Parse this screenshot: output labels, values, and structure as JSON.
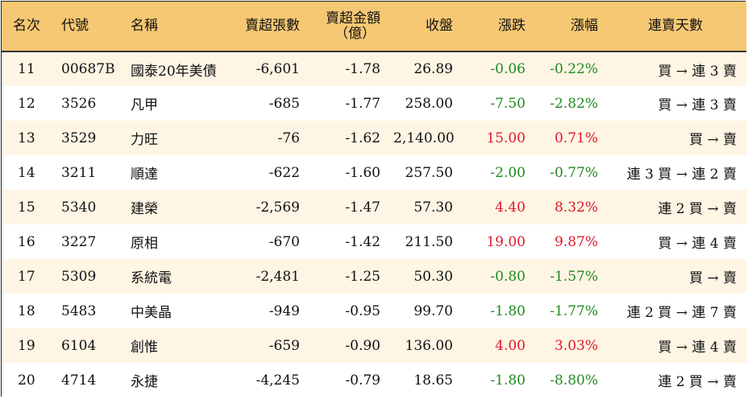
{
  "headers": {
    "rank": "名次",
    "code": "代號",
    "name": "名稱",
    "sell_lots": "賣超張數",
    "sell_amount_line1": "賣超金額",
    "sell_amount_line2": "（億）",
    "close": "收盤",
    "change": "漲跌",
    "pct": "漲幅",
    "streak": "連賣天數"
  },
  "colors": {
    "header_bg": "#f7c873",
    "row_alt_bg": "#fef5e4",
    "up": "#e0182a",
    "down": "#1f8a1f"
  },
  "rows": [
    {
      "rank": "11",
      "code": "00687B",
      "name": "國泰20年美債",
      "sell_lots": "-6,601",
      "sell_amount": "-1.78",
      "close": "26.89",
      "change": "-0.06",
      "pct": "-0.22%",
      "dir": "down",
      "streak": "買 → 連 3 賣"
    },
    {
      "rank": "12",
      "code": "3526",
      "name": "凡甲",
      "sell_lots": "-685",
      "sell_amount": "-1.77",
      "close": "258.00",
      "change": "-7.50",
      "pct": "-2.82%",
      "dir": "down",
      "streak": "買 → 連 3 賣"
    },
    {
      "rank": "13",
      "code": "3529",
      "name": "力旺",
      "sell_lots": "-76",
      "sell_amount": "-1.62",
      "close": "2,140.00",
      "change": "15.00",
      "pct": "0.71%",
      "dir": "up",
      "streak": "買 → 賣"
    },
    {
      "rank": "14",
      "code": "3211",
      "name": "順達",
      "sell_lots": "-622",
      "sell_amount": "-1.60",
      "close": "257.50",
      "change": "-2.00",
      "pct": "-0.77%",
      "dir": "down",
      "streak": "連 3 買 → 連 2 賣"
    },
    {
      "rank": "15",
      "code": "5340",
      "name": "建榮",
      "sell_lots": "-2,569",
      "sell_amount": "-1.47",
      "close": "57.30",
      "change": "4.40",
      "pct": "8.32%",
      "dir": "up",
      "streak": "連 2 買 → 賣"
    },
    {
      "rank": "16",
      "code": "3227",
      "name": "原相",
      "sell_lots": "-670",
      "sell_amount": "-1.42",
      "close": "211.50",
      "change": "19.00",
      "pct": "9.87%",
      "dir": "up",
      "streak": "買 → 連 4 賣"
    },
    {
      "rank": "17",
      "code": "5309",
      "name": "系統電",
      "sell_lots": "-2,481",
      "sell_amount": "-1.25",
      "close": "50.30",
      "change": "-0.80",
      "pct": "-1.57%",
      "dir": "down",
      "streak": "買 → 賣"
    },
    {
      "rank": "18",
      "code": "5483",
      "name": "中美晶",
      "sell_lots": "-949",
      "sell_amount": "-0.95",
      "close": "99.70",
      "change": "-1.80",
      "pct": "-1.77%",
      "dir": "down",
      "streak": "連 2 買 → 連 7 賣"
    },
    {
      "rank": "19",
      "code": "6104",
      "name": "創惟",
      "sell_lots": "-659",
      "sell_amount": "-0.90",
      "close": "136.00",
      "change": "4.00",
      "pct": "3.03%",
      "dir": "up",
      "streak": "買 → 連 4 賣"
    },
    {
      "rank": "20",
      "code": "4714",
      "name": "永捷",
      "sell_lots": "-4,245",
      "sell_amount": "-0.79",
      "close": "18.65",
      "change": "-1.80",
      "pct": "-8.80%",
      "dir": "down",
      "streak": "連 2 買 → 賣"
    }
  ]
}
